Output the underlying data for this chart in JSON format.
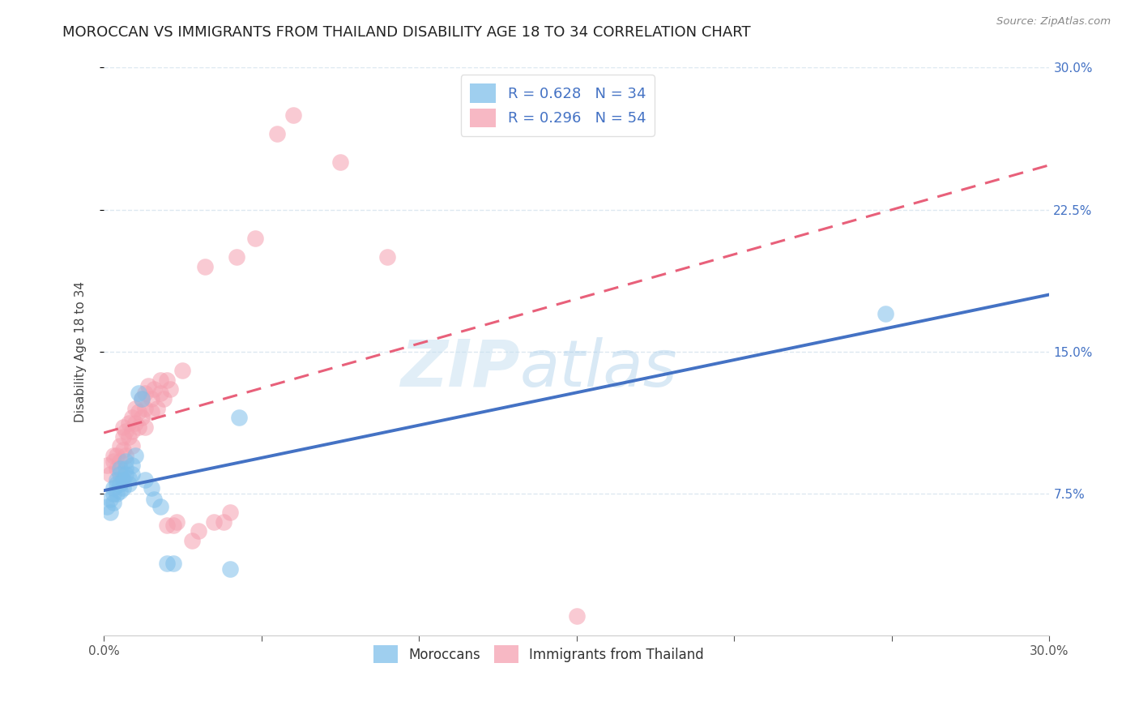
{
  "title": "MOROCCAN VS IMMIGRANTS FROM THAILAND DISABILITY AGE 18 TO 34 CORRELATION CHART",
  "source": "Source: ZipAtlas.com",
  "ylabel": "Disability Age 18 to 34",
  "xlim": [
    0.0,
    0.3
  ],
  "ylim": [
    0.0,
    0.3
  ],
  "watermark_text": "ZIPatlas",
  "moroccan_x": [
    0.001,
    0.002,
    0.002,
    0.003,
    0.003,
    0.003,
    0.004,
    0.004,
    0.004,
    0.005,
    0.005,
    0.005,
    0.005,
    0.006,
    0.006,
    0.007,
    0.007,
    0.007,
    0.008,
    0.008,
    0.009,
    0.009,
    0.01,
    0.011,
    0.012,
    0.013,
    0.015,
    0.016,
    0.018,
    0.02,
    0.022,
    0.04,
    0.043,
    0.248
  ],
  "moroccan_y": [
    0.068,
    0.072,
    0.065,
    0.075,
    0.078,
    0.07,
    0.08,
    0.075,
    0.082,
    0.088,
    0.085,
    0.08,
    0.076,
    0.082,
    0.078,
    0.088,
    0.092,
    0.085,
    0.083,
    0.08,
    0.09,
    0.085,
    0.095,
    0.128,
    0.125,
    0.082,
    0.078,
    0.072,
    0.068,
    0.038,
    0.038,
    0.035,
    0.115,
    0.17
  ],
  "thailand_x": [
    0.001,
    0.002,
    0.003,
    0.003,
    0.004,
    0.004,
    0.005,
    0.005,
    0.006,
    0.006,
    0.006,
    0.007,
    0.007,
    0.008,
    0.008,
    0.009,
    0.009,
    0.009,
    0.01,
    0.01,
    0.011,
    0.011,
    0.012,
    0.012,
    0.013,
    0.013,
    0.013,
    0.014,
    0.015,
    0.015,
    0.016,
    0.017,
    0.018,
    0.018,
    0.019,
    0.02,
    0.02,
    0.021,
    0.022,
    0.023,
    0.025,
    0.028,
    0.03,
    0.032,
    0.035,
    0.038,
    0.04,
    0.042,
    0.048,
    0.055,
    0.06,
    0.075,
    0.09,
    0.15
  ],
  "thailand_y": [
    0.09,
    0.085,
    0.092,
    0.095,
    0.088,
    0.095,
    0.1,
    0.092,
    0.105,
    0.11,
    0.098,
    0.108,
    0.095,
    0.112,
    0.105,
    0.115,
    0.108,
    0.1,
    0.12,
    0.112,
    0.118,
    0.11,
    0.125,
    0.115,
    0.12,
    0.128,
    0.11,
    0.132,
    0.125,
    0.118,
    0.13,
    0.12,
    0.135,
    0.128,
    0.125,
    0.135,
    0.058,
    0.13,
    0.058,
    0.06,
    0.14,
    0.05,
    0.055,
    0.195,
    0.06,
    0.06,
    0.065,
    0.2,
    0.21,
    0.265,
    0.275,
    0.25,
    0.2,
    0.01
  ],
  "blue_scatter_color": "#7fbfea",
  "pink_scatter_color": "#f5a0b0",
  "blue_line_color": "#4472c4",
  "pink_line_color": "#e8607a",
  "background_color": "#ffffff",
  "grid_color": "#dde8f0",
  "title_fontsize": 13,
  "axis_label_fontsize": 11,
  "tick_fontsize": 11,
  "right_tick_color": "#4472c4"
}
